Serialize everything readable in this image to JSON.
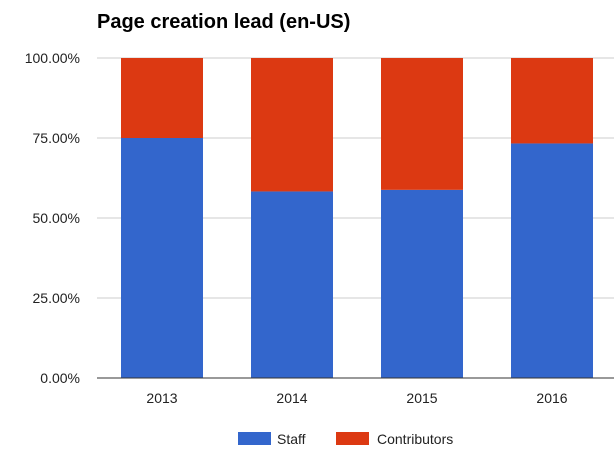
{
  "chart_data": {
    "type": "bar",
    "stacked": true,
    "title": "Page creation lead (en-US)",
    "xlabel": "",
    "ylabel": "",
    "categories": [
      "2013",
      "2014",
      "2015",
      "2016"
    ],
    "series": [
      {
        "name": "Staff",
        "color": "#3366cc",
        "values": [
          75.0,
          58.3,
          58.8,
          73.3
        ]
      },
      {
        "name": "Contributors",
        "color": "#dc3912",
        "values": [
          25.0,
          41.7,
          41.2,
          26.7
        ]
      }
    ],
    "ylim": [
      0,
      100
    ],
    "yticks": [
      "0.00%",
      "25.00%",
      "50.00%",
      "75.00%",
      "100.00%"
    ],
    "grid": true,
    "legend_position": "bottom"
  }
}
